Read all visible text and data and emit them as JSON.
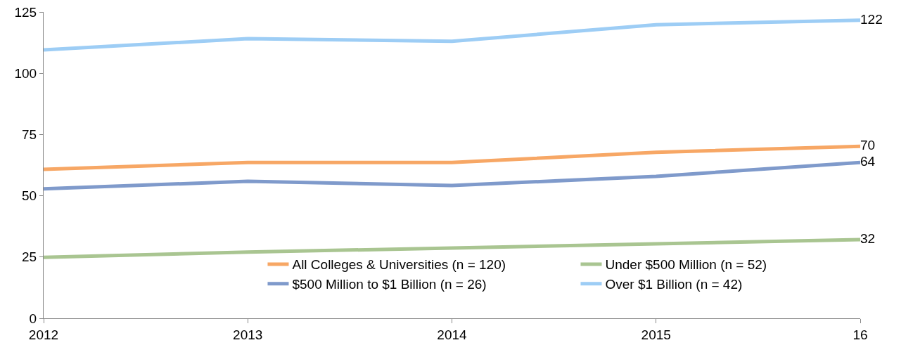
{
  "chart_data": {
    "type": "line",
    "categories": [
      "2012",
      "2013",
      "2014",
      "2015",
      "16"
    ],
    "series": [
      {
        "name": "All Colleges & Universities (n = 120)",
        "color": "#f7a765",
        "values": [
          60.8,
          63.6,
          63.6,
          67.7,
          70.2
        ],
        "value_labels": [
          null,
          null,
          null,
          null,
          "70"
        ]
      },
      {
        "name": "Under $500 Million (n = 52)",
        "color": "#a9c591",
        "values": [
          24.9,
          27,
          28.7,
          30.4,
          32.1
        ],
        "value_labels": [
          null,
          null,
          null,
          null,
          "32"
        ]
      },
      {
        "name": "$500 Million to $1 Billion (n = 26)",
        "color": "#7f9acb",
        "values": [
          52.8,
          55.9,
          54.2,
          57.9,
          63.6
        ],
        "value_labels": [
          null,
          null,
          null,
          null,
          "64"
        ]
      },
      {
        "name": "Over $1 Billion (n = 42)",
        "color": "#9dcdf5",
        "values": [
          109.5,
          114.1,
          113,
          119.8,
          121.6
        ],
        "value_labels": [
          null,
          null,
          null,
          null,
          "122"
        ]
      }
    ],
    "ylim": [
      0,
      125
    ],
    "yticks": [
      0,
      25,
      50,
      75,
      100,
      125
    ],
    "grid": false,
    "legend": "bottom",
    "marker": "none",
    "line_style": "solid"
  }
}
